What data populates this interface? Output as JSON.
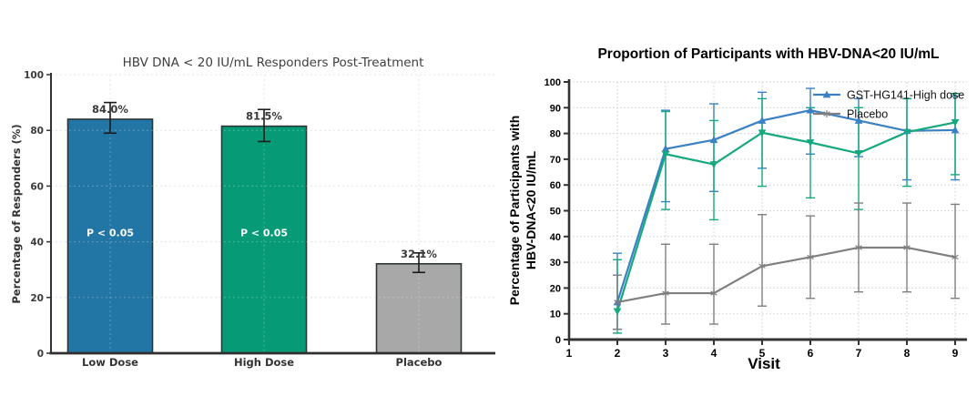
{
  "page": {
    "background": "#ffffff"
  },
  "chart_data": [
    {
      "id": "bar-chart",
      "type": "bar",
      "title": "HBV DNA < 20 IU/mL Responders Post-Treatment",
      "xlabel": "",
      "ylabel": "Percentage of Responders (%)",
      "categories": [
        "Low Dose",
        "High Dose",
        "Placebo"
      ],
      "values": [
        84.0,
        81.5,
        32.1
      ],
      "value_labels": [
        "84.0%",
        "81.5%",
        "32.1%"
      ],
      "error_bars": [
        [
          79,
          90
        ],
        [
          76,
          87.5
        ],
        [
          29,
          36
        ]
      ],
      "bar_annotations": [
        "P < 0.05",
        "P < 0.05",
        ""
      ],
      "bar_colors": [
        "#2176a5",
        "#069a76",
        "#a8a8a8"
      ],
      "bar_edge_color": "#2d3436",
      "ylim": [
        0,
        100
      ],
      "yticks": [
        0,
        20,
        40,
        60,
        80,
        100
      ],
      "grid": true,
      "text_color": "#3a3a3a"
    },
    {
      "id": "line-chart",
      "type": "line",
      "title": "Proportion of Participants with HBV-DNA<20 IU/mL",
      "xlabel": "Visit",
      "ylabel_lines": [
        "Percentage of Participants with",
        "HBV-DNA<20 IU/mL"
      ],
      "x": [
        2,
        3,
        4,
        5,
        6,
        7,
        8,
        9
      ],
      "xticks": [
        1,
        2,
        3,
        4,
        5,
        6,
        7,
        8,
        9
      ],
      "xlim": [
        1,
        9.3
      ],
      "ylim": [
        0,
        100
      ],
      "yticks": [
        0,
        10,
        20,
        30,
        40,
        50,
        60,
        70,
        80,
        90,
        100
      ],
      "grid": true,
      "legend_position": "top-right",
      "legend_entries": [
        "GST-HG141-High dose",
        "Placebo"
      ],
      "series": [
        {
          "name": "GST-HG141-High dose",
          "color": "#3a80c2",
          "marker": "triangle-up",
          "in_legend": true,
          "values": [
            14.5,
            74,
            77.5,
            85,
            89,
            85,
            81,
            81.3
          ],
          "error_bars": [
            [
              4,
              33.5
            ],
            [
              53.5,
              89
            ],
            [
              57.5,
              91.5
            ],
            [
              66.5,
              96
            ],
            [
              72,
              97.5
            ],
            [
              71,
              93.5
            ],
            [
              62,
              93.5
            ],
            [
              62,
              94.5
            ]
          ]
        },
        {
          "name": "",
          "color": "#16a87e",
          "marker": "triangle-down",
          "in_legend": false,
          "values": [
            11,
            72,
            68,
            80.3,
            76.5,
            72.3,
            80.5,
            84.3
          ],
          "error_bars": [
            [
              2.5,
              31
            ],
            [
              50.5,
              88.5
            ],
            [
              46.5,
              85
            ],
            [
              59.5,
              93.5
            ],
            [
              55,
              90
            ],
            [
              50.5,
              90
            ],
            [
              59.5,
              93.5
            ],
            [
              64,
              95.5
            ]
          ]
        },
        {
          "name": "Placebo",
          "color": "#7f7f7f",
          "marker": "star",
          "in_legend": true,
          "values": [
            14.5,
            18,
            18,
            28.5,
            32,
            35.7,
            35.7,
            32
          ],
          "error_bars": [
            [
              4,
              25
            ],
            [
              6,
              37
            ],
            [
              6,
              37
            ],
            [
              13,
              48.5
            ],
            [
              16,
              48
            ],
            [
              18.5,
              53
            ],
            [
              18.5,
              53
            ],
            [
              16,
              52.5
            ]
          ]
        }
      ]
    }
  ]
}
